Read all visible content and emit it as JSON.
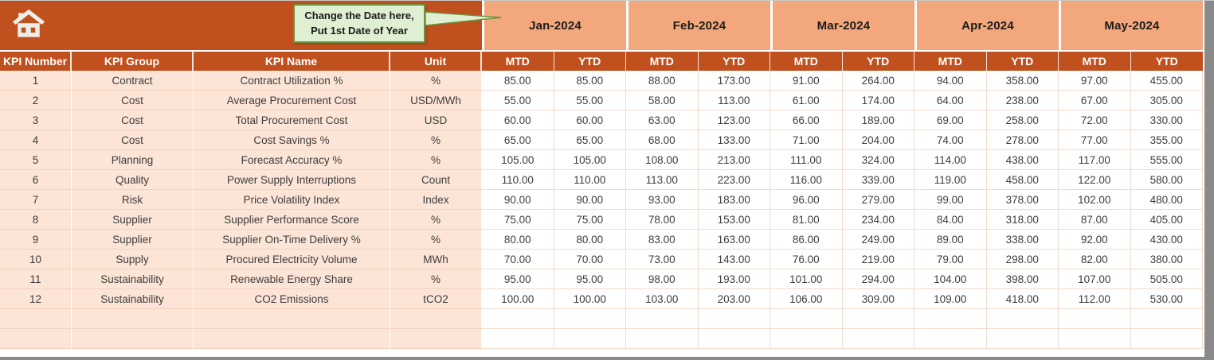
{
  "callout": {
    "line1": "Change the Date here,",
    "line2": "Put 1st Date of Year"
  },
  "months": [
    "Jan-2024",
    "Feb-2024",
    "Mar-2024",
    "Apr-2024",
    "May-2024"
  ],
  "column_headers": [
    "KPI Number",
    "KPI Group",
    "KPI Name",
    "Unit"
  ],
  "period_headers": {
    "mtd": "MTD",
    "ytd": "YTD"
  },
  "icons": {
    "home": "home-icon"
  },
  "table": {
    "rows": [
      {
        "number": "1",
        "group": "Contract",
        "name": "Contract Utilization %",
        "unit": "%",
        "values": [
          "85.00",
          "85.00",
          "88.00",
          "173.00",
          "91.00",
          "264.00",
          "94.00",
          "358.00",
          "97.00",
          "455.00"
        ]
      },
      {
        "number": "2",
        "group": "Cost",
        "name": "Average Procurement Cost",
        "unit": "USD/MWh",
        "values": [
          "55.00",
          "55.00",
          "58.00",
          "113.00",
          "61.00",
          "174.00",
          "64.00",
          "238.00",
          "67.00",
          "305.00"
        ]
      },
      {
        "number": "3",
        "group": "Cost",
        "name": "Total Procurement Cost",
        "unit": "USD",
        "values": [
          "60.00",
          "60.00",
          "63.00",
          "123.00",
          "66.00",
          "189.00",
          "69.00",
          "258.00",
          "72.00",
          "330.00"
        ]
      },
      {
        "number": "4",
        "group": "Cost",
        "name": "Cost Savings %",
        "unit": "%",
        "values": [
          "65.00",
          "65.00",
          "68.00",
          "133.00",
          "71.00",
          "204.00",
          "74.00",
          "278.00",
          "77.00",
          "355.00"
        ]
      },
      {
        "number": "5",
        "group": "Planning",
        "name": "Forecast Accuracy %",
        "unit": "%",
        "values": [
          "105.00",
          "105.00",
          "108.00",
          "213.00",
          "111.00",
          "324.00",
          "114.00",
          "438.00",
          "117.00",
          "555.00"
        ]
      },
      {
        "number": "6",
        "group": "Quality",
        "name": "Power Supply Interruptions",
        "unit": "Count",
        "values": [
          "110.00",
          "110.00",
          "113.00",
          "223.00",
          "116.00",
          "339.00",
          "119.00",
          "458.00",
          "122.00",
          "580.00"
        ]
      },
      {
        "number": "7",
        "group": "Risk",
        "name": "Price Volatility Index",
        "unit": "Index",
        "values": [
          "90.00",
          "90.00",
          "93.00",
          "183.00",
          "96.00",
          "279.00",
          "99.00",
          "378.00",
          "102.00",
          "480.00"
        ]
      },
      {
        "number": "8",
        "group": "Supplier",
        "name": "Supplier Performance Score",
        "unit": "%",
        "values": [
          "75.00",
          "75.00",
          "78.00",
          "153.00",
          "81.00",
          "234.00",
          "84.00",
          "318.00",
          "87.00",
          "405.00"
        ]
      },
      {
        "number": "9",
        "group": "Supplier",
        "name": "Supplier On-Time Delivery %",
        "unit": "%",
        "values": [
          "80.00",
          "80.00",
          "83.00",
          "163.00",
          "86.00",
          "249.00",
          "89.00",
          "338.00",
          "92.00",
          "430.00"
        ]
      },
      {
        "number": "10",
        "group": "Supply",
        "name": "Procured Electricity Volume",
        "unit": "MWh",
        "values": [
          "70.00",
          "70.00",
          "73.00",
          "143.00",
          "76.00",
          "219.00",
          "79.00",
          "298.00",
          "82.00",
          "380.00"
        ]
      },
      {
        "number": "11",
        "group": "Sustainability",
        "name": "Renewable Energy Share",
        "unit": "%",
        "values": [
          "95.00",
          "95.00",
          "98.00",
          "193.00",
          "101.00",
          "294.00",
          "104.00",
          "398.00",
          "107.00",
          "505.00"
        ]
      },
      {
        "number": "12",
        "group": "Sustainability",
        "name": "CO2 Emissions",
        "unit": "tCO2",
        "values": [
          "100.00",
          "100.00",
          "103.00",
          "203.00",
          "106.00",
          "309.00",
          "109.00",
          "418.00",
          "112.00",
          "530.00"
        ]
      }
    ],
    "empty_rows": 2
  },
  "colors": {
    "rust": "#C0501D",
    "salmon": "#F2A77C",
    "peach": "#FCE4D6",
    "callout_fill": "#DFEFD2",
    "callout_border": "#6E9140",
    "header_text": "#FFFFFF",
    "data_text": "#3D3D3D",
    "edge_gray": "#8A8A8A"
  }
}
